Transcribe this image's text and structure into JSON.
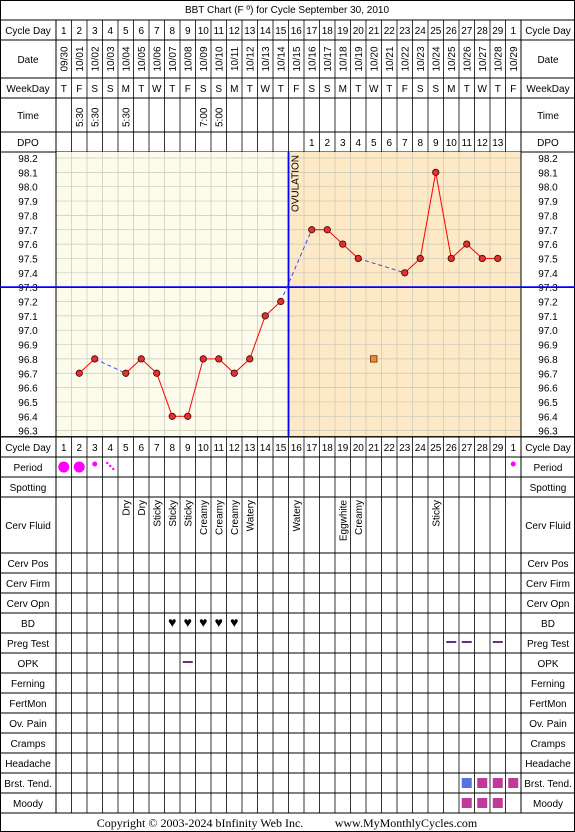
{
  "chart_data": {
    "type": "line",
    "title": "BBT Chart (F º) for Cycle September 30, 2010",
    "cycle_days": [
      1,
      2,
      3,
      4,
      5,
      6,
      7,
      8,
      9,
      10,
      11,
      12,
      13,
      14,
      15,
      16,
      17,
      18,
      19,
      20,
      21,
      22,
      23,
      24,
      25,
      26,
      27,
      28,
      29,
      1
    ],
    "dates": [
      "09/30",
      "10/01",
      "10/02",
      "10/03",
      "10/04",
      "10/05",
      "10/06",
      "10/07",
      "10/08",
      "10/09",
      "10/10",
      "10/11",
      "10/12",
      "10/13",
      "10/14",
      "10/15",
      "10/16",
      "10/17",
      "10/18",
      "10/19",
      "10/20",
      "10/21",
      "10/22",
      "10/23",
      "10/24",
      "10/25",
      "10/26",
      "10/27",
      "10/28",
      "10/29"
    ],
    "weekdays": [
      "T",
      "F",
      "S",
      "S",
      "M",
      "T",
      "W",
      "T",
      "F",
      "S",
      "S",
      "M",
      "T",
      "W",
      "T",
      "F",
      "S",
      "S",
      "M",
      "T",
      "W",
      "T",
      "F",
      "S",
      "S",
      "M",
      "T",
      "W",
      "T",
      "F"
    ],
    "times": [
      "",
      "5:30",
      "5:30",
      "",
      "5:30",
      "",
      "",
      "",
      "",
      "7:00",
      "5:00",
      "",
      "",
      "",
      "",
      "",
      "",
      "",
      "",
      "",
      "",
      "",
      "",
      "",
      "",
      "",
      "",
      "",
      "",
      ""
    ],
    "dpo": [
      "",
      "",
      "",
      "",
      "",
      "",
      "",
      "",
      "",
      "",
      "",
      "",
      "",
      "",
      "",
      "",
      "1",
      "2",
      "3",
      "4",
      "5",
      "6",
      "7",
      "8",
      "9",
      "10",
      "11",
      "12",
      "13",
      ""
    ],
    "temps": [
      null,
      96.7,
      96.8,
      null,
      96.7,
      96.8,
      96.7,
      96.4,
      96.4,
      96.8,
      96.8,
      96.7,
      96.8,
      97.1,
      97.2,
      null,
      97.7,
      97.7,
      97.6,
      97.5,
      null,
      null,
      97.4,
      97.5,
      98.1,
      97.5,
      97.6,
      97.5,
      97.5,
      null
    ],
    "discarded": [
      {
        "day_index": 20,
        "temp": 96.8
      }
    ],
    "ylim": [
      96.3,
      98.2
    ],
    "yticks": [
      "98.2",
      "98.1",
      "98.0",
      "97.9",
      "97.8",
      "97.7",
      "97.6",
      "97.5",
      "97.4",
      "97.3",
      "97.2",
      "97.1",
      "97.0",
      "96.9",
      "96.8",
      "96.7",
      "96.6",
      "96.5",
      "96.4",
      "96.3"
    ],
    "coverline": 97.3,
    "ovulation_day_index": 15,
    "ovulation_label": "OVULATION",
    "line_color": "#ff0000",
    "dashed_color": "#4040ff",
    "coverline_color": "#0000ff",
    "pre_bg": "#fdfcec",
    "post_bg": "#fde9c5",
    "period": [
      "large",
      "large",
      "small",
      "spotting",
      "",
      "",
      "",
      "",
      "",
      "",
      "",
      "",
      "",
      "",
      "",
      "",
      "",
      "",
      "",
      "",
      "",
      "",
      "",
      "",
      "",
      "",
      "",
      "",
      "",
      "small"
    ],
    "cerv_fluid": [
      "",
      "",
      "",
      "",
      "Dry",
      "Dry",
      "Sticky",
      "Sticky",
      "Sticky",
      "Creamy",
      "Creamy",
      "Creamy",
      "Watery",
      "",
      "",
      "Watery",
      "",
      "",
      "Eggwhite",
      "Creamy",
      "",
      "",
      "",
      "",
      "Sticky",
      "",
      "",
      "",
      "",
      ""
    ],
    "bd": [
      false,
      false,
      false,
      false,
      false,
      false,
      false,
      true,
      true,
      true,
      true,
      true,
      false,
      false,
      false,
      false,
      false,
      false,
      false,
      false,
      false,
      false,
      false,
      false,
      false,
      false,
      false,
      false,
      false,
      false
    ],
    "preg_test": [
      false,
      false,
      false,
      false,
      false,
      false,
      false,
      false,
      false,
      false,
      false,
      false,
      false,
      false,
      false,
      false,
      false,
      false,
      false,
      false,
      false,
      false,
      false,
      false,
      false,
      true,
      true,
      false,
      true,
      false
    ],
    "opk": [
      false,
      false,
      false,
      false,
      false,
      false,
      false,
      false,
      true,
      false,
      false,
      false,
      false,
      false,
      false,
      false,
      false,
      false,
      false,
      false,
      false,
      false,
      false,
      false,
      false,
      false,
      false,
      false,
      false,
      false
    ],
    "brst_tend": [
      "",
      "",
      "",
      "",
      "",
      "",
      "",
      "",
      "",
      "",
      "",
      "",
      "",
      "",
      "",
      "",
      "",
      "",
      "",
      "",
      "",
      "",
      "",
      "",
      "",
      "",
      "light",
      "dark",
      "dark",
      "dark"
    ],
    "moody": [
      "",
      "",
      "",
      "",
      "",
      "",
      "",
      "",
      "",
      "",
      "",
      "",
      "",
      "",
      "",
      "",
      "",
      "",
      "",
      "",
      "",
      "",
      "",
      "",
      "",
      "",
      "dark",
      "dark",
      "dark",
      ""
    ]
  },
  "labels": {
    "cycle_day": "Cycle Day",
    "date": "Date",
    "weekday": "WeekDay",
    "time": "Time",
    "dpo": "DPO",
    "period": "Period",
    "spotting": "Spotting",
    "cerv_fluid": "Cerv Fluid",
    "cerv_pos": "Cerv Pos",
    "cerv_firm": "Cerv Firm",
    "cerv_opn": "Cerv Opn",
    "bd": "BD",
    "preg_test": "Preg Test",
    "opk": "OPK",
    "ferning": "Ferning",
    "fertmon": "FertMon",
    "ov_pain": "Ov. Pain",
    "cramps": "Cramps",
    "headache": "Headache",
    "brst_tend": "Brst. Tend.",
    "moody": "Moody"
  },
  "footer": {
    "copyright": "Copyright © 2003-2024 bInfinity Web Inc.",
    "site": "www.MyMonthlyCycles.com"
  }
}
